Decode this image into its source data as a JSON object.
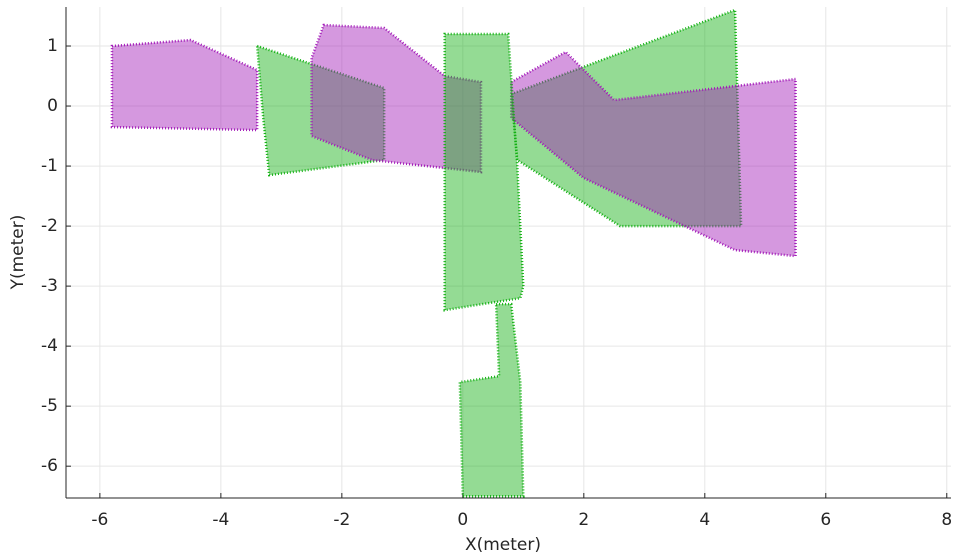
{
  "chart_data": {
    "type": "scatter",
    "xlabel": "X(meter)",
    "ylabel": "Y(meter)",
    "xlim": [
      -6.56,
      8.07
    ],
    "ylim": [
      -6.53,
      1.65
    ],
    "xticks": [
      -6,
      -4,
      -2,
      0,
      2,
      4,
      6,
      8
    ],
    "yticks": [
      -6,
      -5,
      -4,
      -3,
      -2,
      -1,
      0,
      1
    ],
    "grid": true,
    "series": [
      {
        "color": "#12b012",
        "x": [
          0.8,
          4.5,
          4.6,
          2.6,
          0.9
        ],
        "y": [
          0.2,
          1.6,
          -2.0,
          -2.0,
          -0.9
        ]
      },
      {
        "color": "#12b012",
        "x": [
          -3.4,
          -1.3,
          -1.3,
          -3.2,
          -3.3
        ],
        "y": [
          1.0,
          0.3,
          -0.9,
          -1.15,
          -0.2
        ]
      },
      {
        "color": "#a21ab8",
        "x": [
          -5.8,
          -4.5,
          -3.4,
          -3.4,
          -5.8
        ],
        "y": [
          1.0,
          1.1,
          0.6,
          -0.4,
          -0.35
        ]
      },
      {
        "color": "#a21ab8",
        "x": [
          -2.3,
          -1.3,
          -0.3,
          0.3,
          0.3,
          -1.5,
          -2.5,
          -2.5
        ],
        "y": [
          1.35,
          1.3,
          0.5,
          0.4,
          -1.1,
          -0.9,
          -0.5,
          0.8
        ]
      },
      {
        "color": "#a21ab8",
        "x": [
          0.8,
          1.7,
          2.5,
          5.5,
          5.5,
          4.5,
          2.0,
          0.8
        ],
        "y": [
          0.4,
          0.9,
          0.1,
          0.45,
          -2.5,
          -2.4,
          -1.2,
          -0.2
        ]
      },
      {
        "color": "#12b012",
        "x": [
          -0.3,
          0.75,
          0.9,
          1.0,
          0.95,
          -0.3
        ],
        "y": [
          1.2,
          1.2,
          -1.0,
          -3.0,
          -3.2,
          -3.4
        ]
      },
      {
        "color": "#12b012",
        "x": [
          0.55,
          0.8,
          0.95,
          1.0,
          0.0,
          -0.05,
          0.6
        ],
        "y": [
          -3.3,
          -3.3,
          -4.6,
          -6.5,
          -6.5,
          -4.6,
          -4.5
        ]
      }
    ]
  }
}
